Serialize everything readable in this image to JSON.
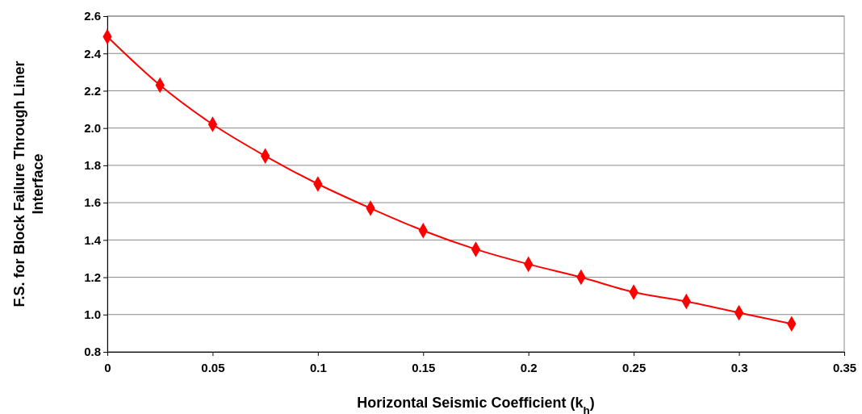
{
  "chart_data": {
    "type": "line",
    "xlabel": "Horizontal Seismic Coefficient (k$_{h}$)",
    "ylabel": "F.S. for Block Failure Through Liner Interface",
    "x": [
      0,
      0.025,
      0.05,
      0.075,
      0.1,
      0.125,
      0.15,
      0.175,
      0.2,
      0.225,
      0.25,
      0.275,
      0.3,
      0.325
    ],
    "series": [
      {
        "color": "#ff0000",
        "values": [
          2.49,
          2.23,
          2.02,
          1.85,
          1.7,
          1.57,
          1.45,
          1.35,
          1.27,
          1.2,
          1.12,
          1.07,
          1.01,
          0.95
        ]
      }
    ],
    "xlim": [
      0,
      0.35
    ],
    "xticks": [
      0,
      0.05,
      0.1,
      0.15,
      0.2,
      0.25,
      0.3,
      0.35
    ],
    "ylim": [
      0.8,
      2.6
    ],
    "yticks": [
      0.8,
      {
        "value": 1.0,
        "label": "1.0"
      },
      1.2,
      1.4,
      1.6,
      1.8,
      {
        "value": 2.0,
        "label": "2.0"
      },
      2.2,
      2.4,
      2.6
    ],
    "grid": "y",
    "marker": "diamond",
    "line_style": "solid"
  }
}
